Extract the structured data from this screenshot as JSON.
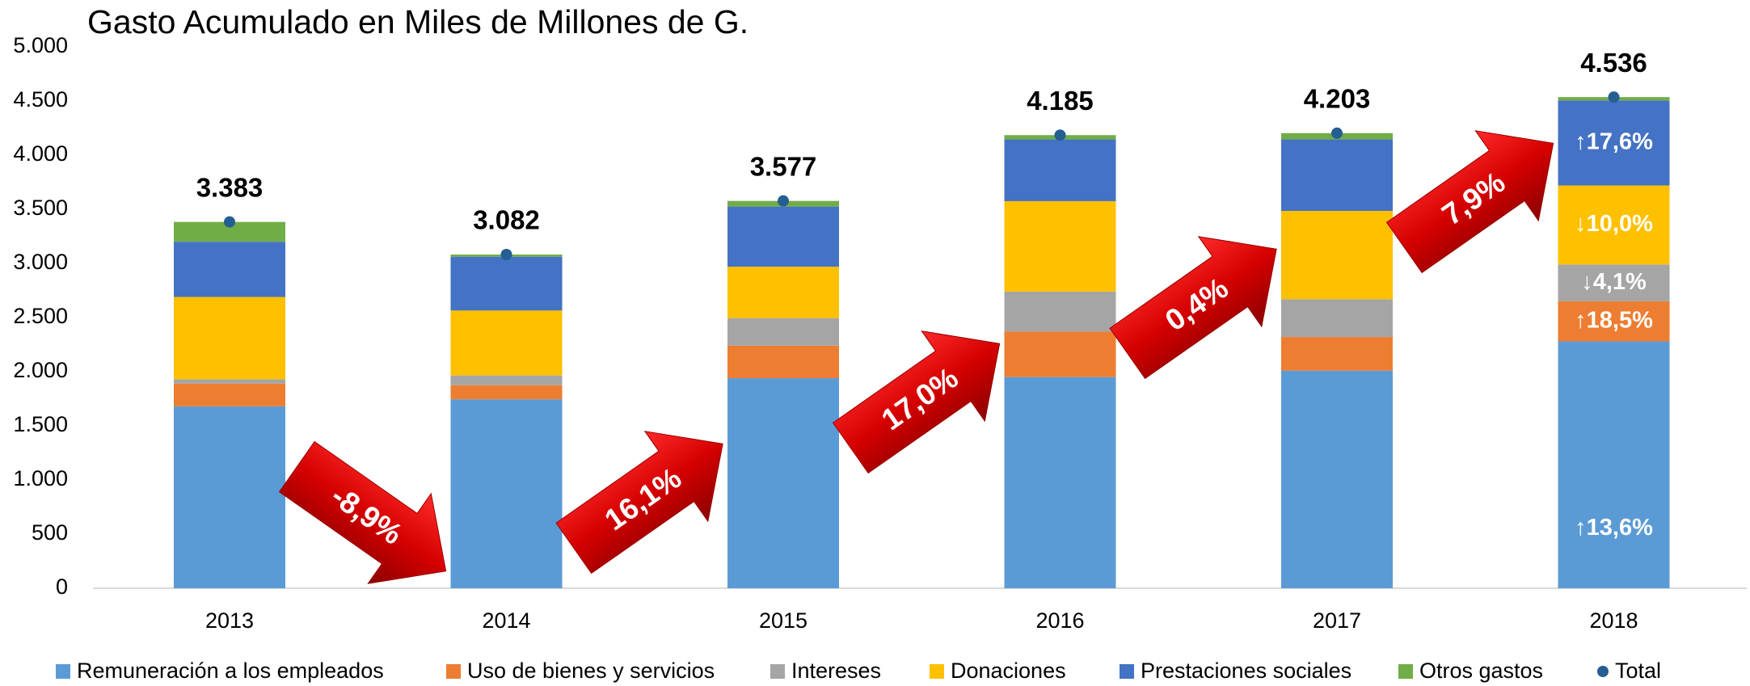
{
  "chart_data": {
    "type": "stacked_bar",
    "title": "Gasto Acumulado en Miles de Millones de G.",
    "categories": [
      "2013",
      "2014",
      "2015",
      "2016",
      "2017",
      "2018"
    ],
    "series": [
      {
        "name": "Remuneración a los empleados",
        "color": "#5b9bd5",
        "values": [
          1680,
          1745,
          1940,
          1950,
          2010,
          2280
        ]
      },
      {
        "name": "Uso de bienes y servicios",
        "color": "#ed7d31",
        "values": [
          210,
          130,
          300,
          420,
          310,
          370
        ]
      },
      {
        "name": "Intereses",
        "color": "#a5a5a5",
        "values": [
          40,
          90,
          255,
          370,
          350,
          340
        ]
      },
      {
        "name": "Donaciones",
        "color": "#ffc000",
        "values": [
          760,
          600,
          475,
          835,
          815,
          730
        ]
      },
      {
        "name": "Prestaciones sociales",
        "color": "#4472c4",
        "values": [
          510,
          497,
          555,
          570,
          660,
          785
        ]
      },
      {
        "name": "Otros gastos",
        "color": "#70ad47",
        "values": [
          183,
          20,
          52,
          40,
          58,
          31
        ]
      }
    ],
    "total": {
      "name": "Total",
      "color": "#255e91",
      "values": [
        3383,
        3082,
        3577,
        4185,
        4203,
        4536
      ],
      "value_labels": [
        "3.383",
        "3.082",
        "3.577",
        "4.185",
        "4.203",
        "4.536"
      ]
    },
    "growth_labels": [
      "-8,9%",
      "16,1%",
      "17,0%",
      "0,4%",
      "7,9%"
    ],
    "last_year_changes": [
      "↑13,6%",
      "↑18,5%",
      "↓4,1%",
      "↓10,0%",
      "↑17,6%"
    ],
    "ylim": [
      0,
      5000
    ],
    "yticks": [
      0,
      500,
      {
        "value": 1000,
        "label": "1.000"
      },
      {
        "value": 1500,
        "label": "1.500"
      },
      {
        "value": 2000,
        "label": "2.000"
      },
      {
        "value": 2500,
        "label": "2.500"
      },
      {
        "value": 3000,
        "label": "3.000"
      },
      {
        "value": 3500,
        "label": "3.500"
      },
      {
        "value": 4000,
        "label": "4.000"
      },
      {
        "value": 4500,
        "label": "4.500"
      },
      {
        "value": 5000,
        "label": "5.000"
      }
    ],
    "legend": "bottom"
  }
}
